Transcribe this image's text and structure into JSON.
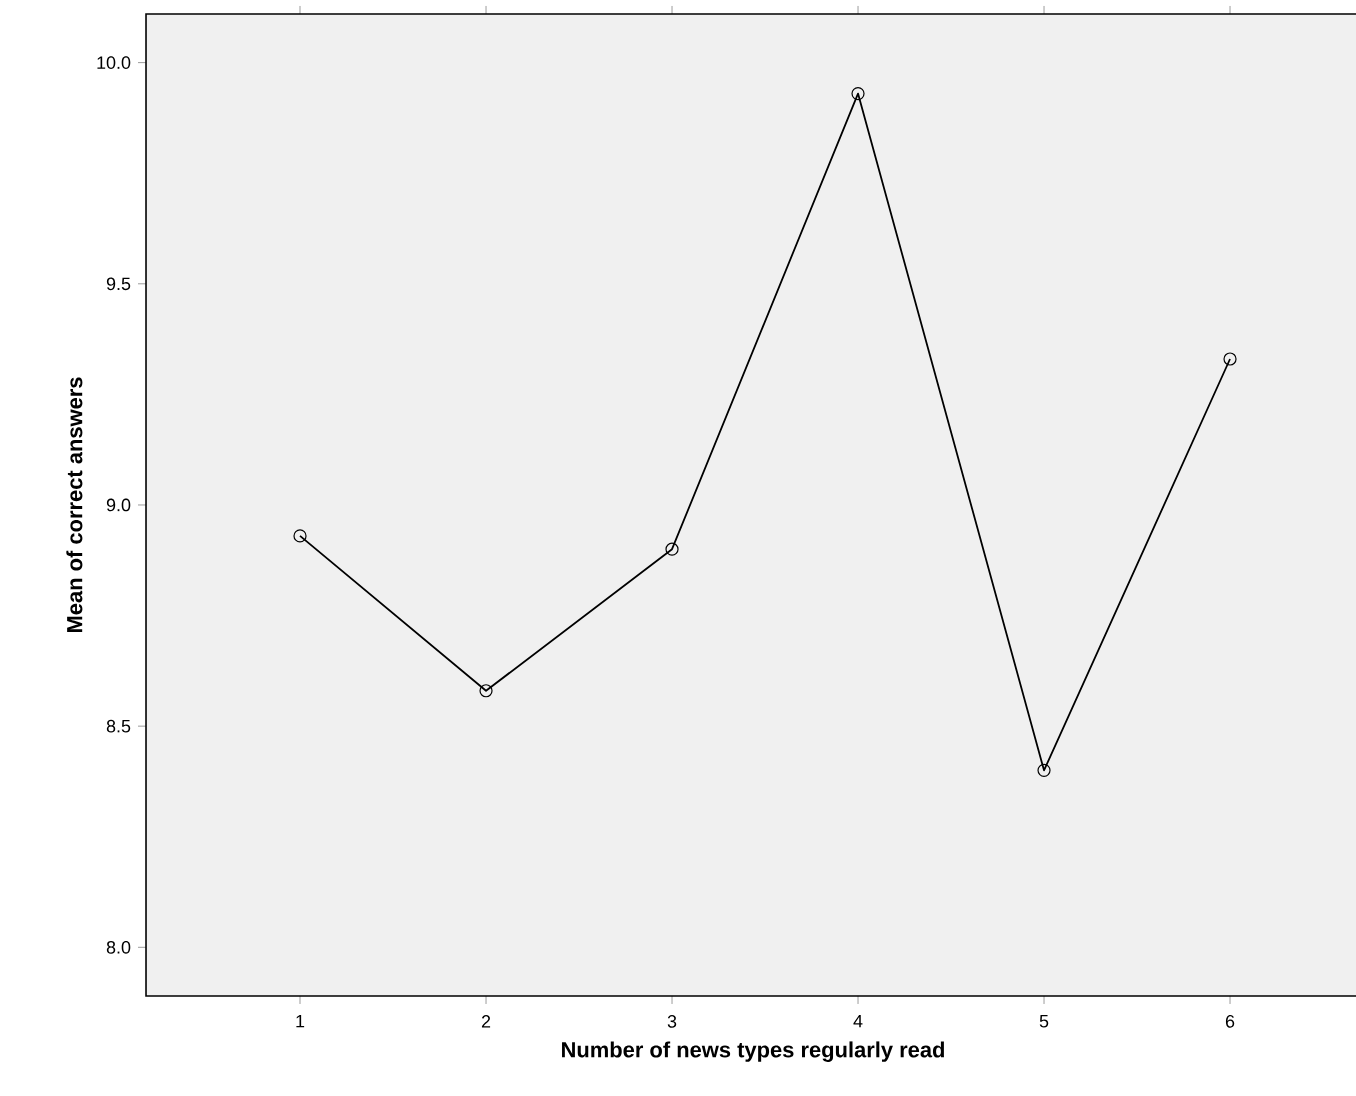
{
  "chart_data": {
    "type": "line",
    "xlabel": "Number of news types regularly read",
    "ylabel": "Mean of correct answers",
    "categories": [
      "1",
      "2",
      "3",
      "4",
      "5",
      "6"
    ],
    "series": [
      {
        "color": "#000000",
        "values": [
          8.93,
          8.58,
          8.9,
          9.93,
          8.4,
          9.33
        ]
      }
    ],
    "ylim": [
      7.89,
      10.11
    ],
    "yticks": [
      {
        "value": 8,
        "label": "8.0"
      },
      {
        "value": 8.5,
        "label": "8.5"
      },
      {
        "value": 9,
        "label": "9.0"
      },
      {
        "value": 9.5,
        "label": "9.5"
      },
      {
        "value": 10,
        "label": "10.0"
      }
    ],
    "marker": "circle",
    "line_style": "solid",
    "grid": false,
    "legend": false
  }
}
